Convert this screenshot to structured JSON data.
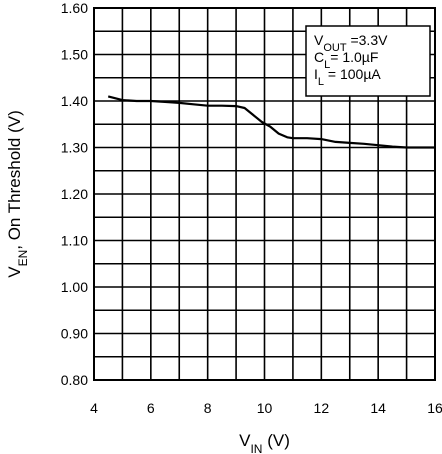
{
  "chart_data": {
    "type": "line",
    "xlabel": {
      "main": "V",
      "sub": "IN",
      "rest": " (V)"
    },
    "ylabel": {
      "main": "V",
      "sub": "EN",
      "rest": ", On Threshold (V)"
    },
    "xlim": [
      4,
      16
    ],
    "ylim": [
      0.8,
      1.6
    ],
    "x_ticks": [
      "4",
      "6",
      "8",
      "10",
      "12",
      "14",
      "16"
    ],
    "y_ticks": [
      "0.80",
      "0.90",
      "1.00",
      "1.10",
      "1.20",
      "1.30",
      "1.40",
      "1.50",
      "1.60"
    ],
    "grid": true,
    "legend": "top-right",
    "annotation": [
      {
        "main": "V",
        "sub": "OUT",
        "rest": " =3.3V"
      },
      {
        "main": "C",
        "sub": "L",
        "rest": "= 1.0µF"
      },
      {
        "main": "I",
        "sub": "L",
        "rest": " = 100µA"
      }
    ],
    "series": [
      {
        "x": [
          4.5,
          5.0,
          5.5,
          6.0,
          6.5,
          7.0,
          7.5,
          8.0,
          8.5,
          9.0,
          9.3,
          9.6,
          9.9,
          10.2,
          10.5,
          10.8,
          11.0,
          11.5,
          12.0,
          12.5,
          13.0,
          13.5,
          14.0,
          14.5,
          15.0,
          15.5,
          16.0
        ],
        "y": [
          1.41,
          1.402,
          1.4,
          1.4,
          1.398,
          1.396,
          1.393,
          1.39,
          1.39,
          1.389,
          1.385,
          1.37,
          1.355,
          1.345,
          1.33,
          1.322,
          1.32,
          1.32,
          1.318,
          1.312,
          1.31,
          1.308,
          1.305,
          1.302,
          1.3,
          1.3,
          1.3
        ]
      }
    ]
  }
}
